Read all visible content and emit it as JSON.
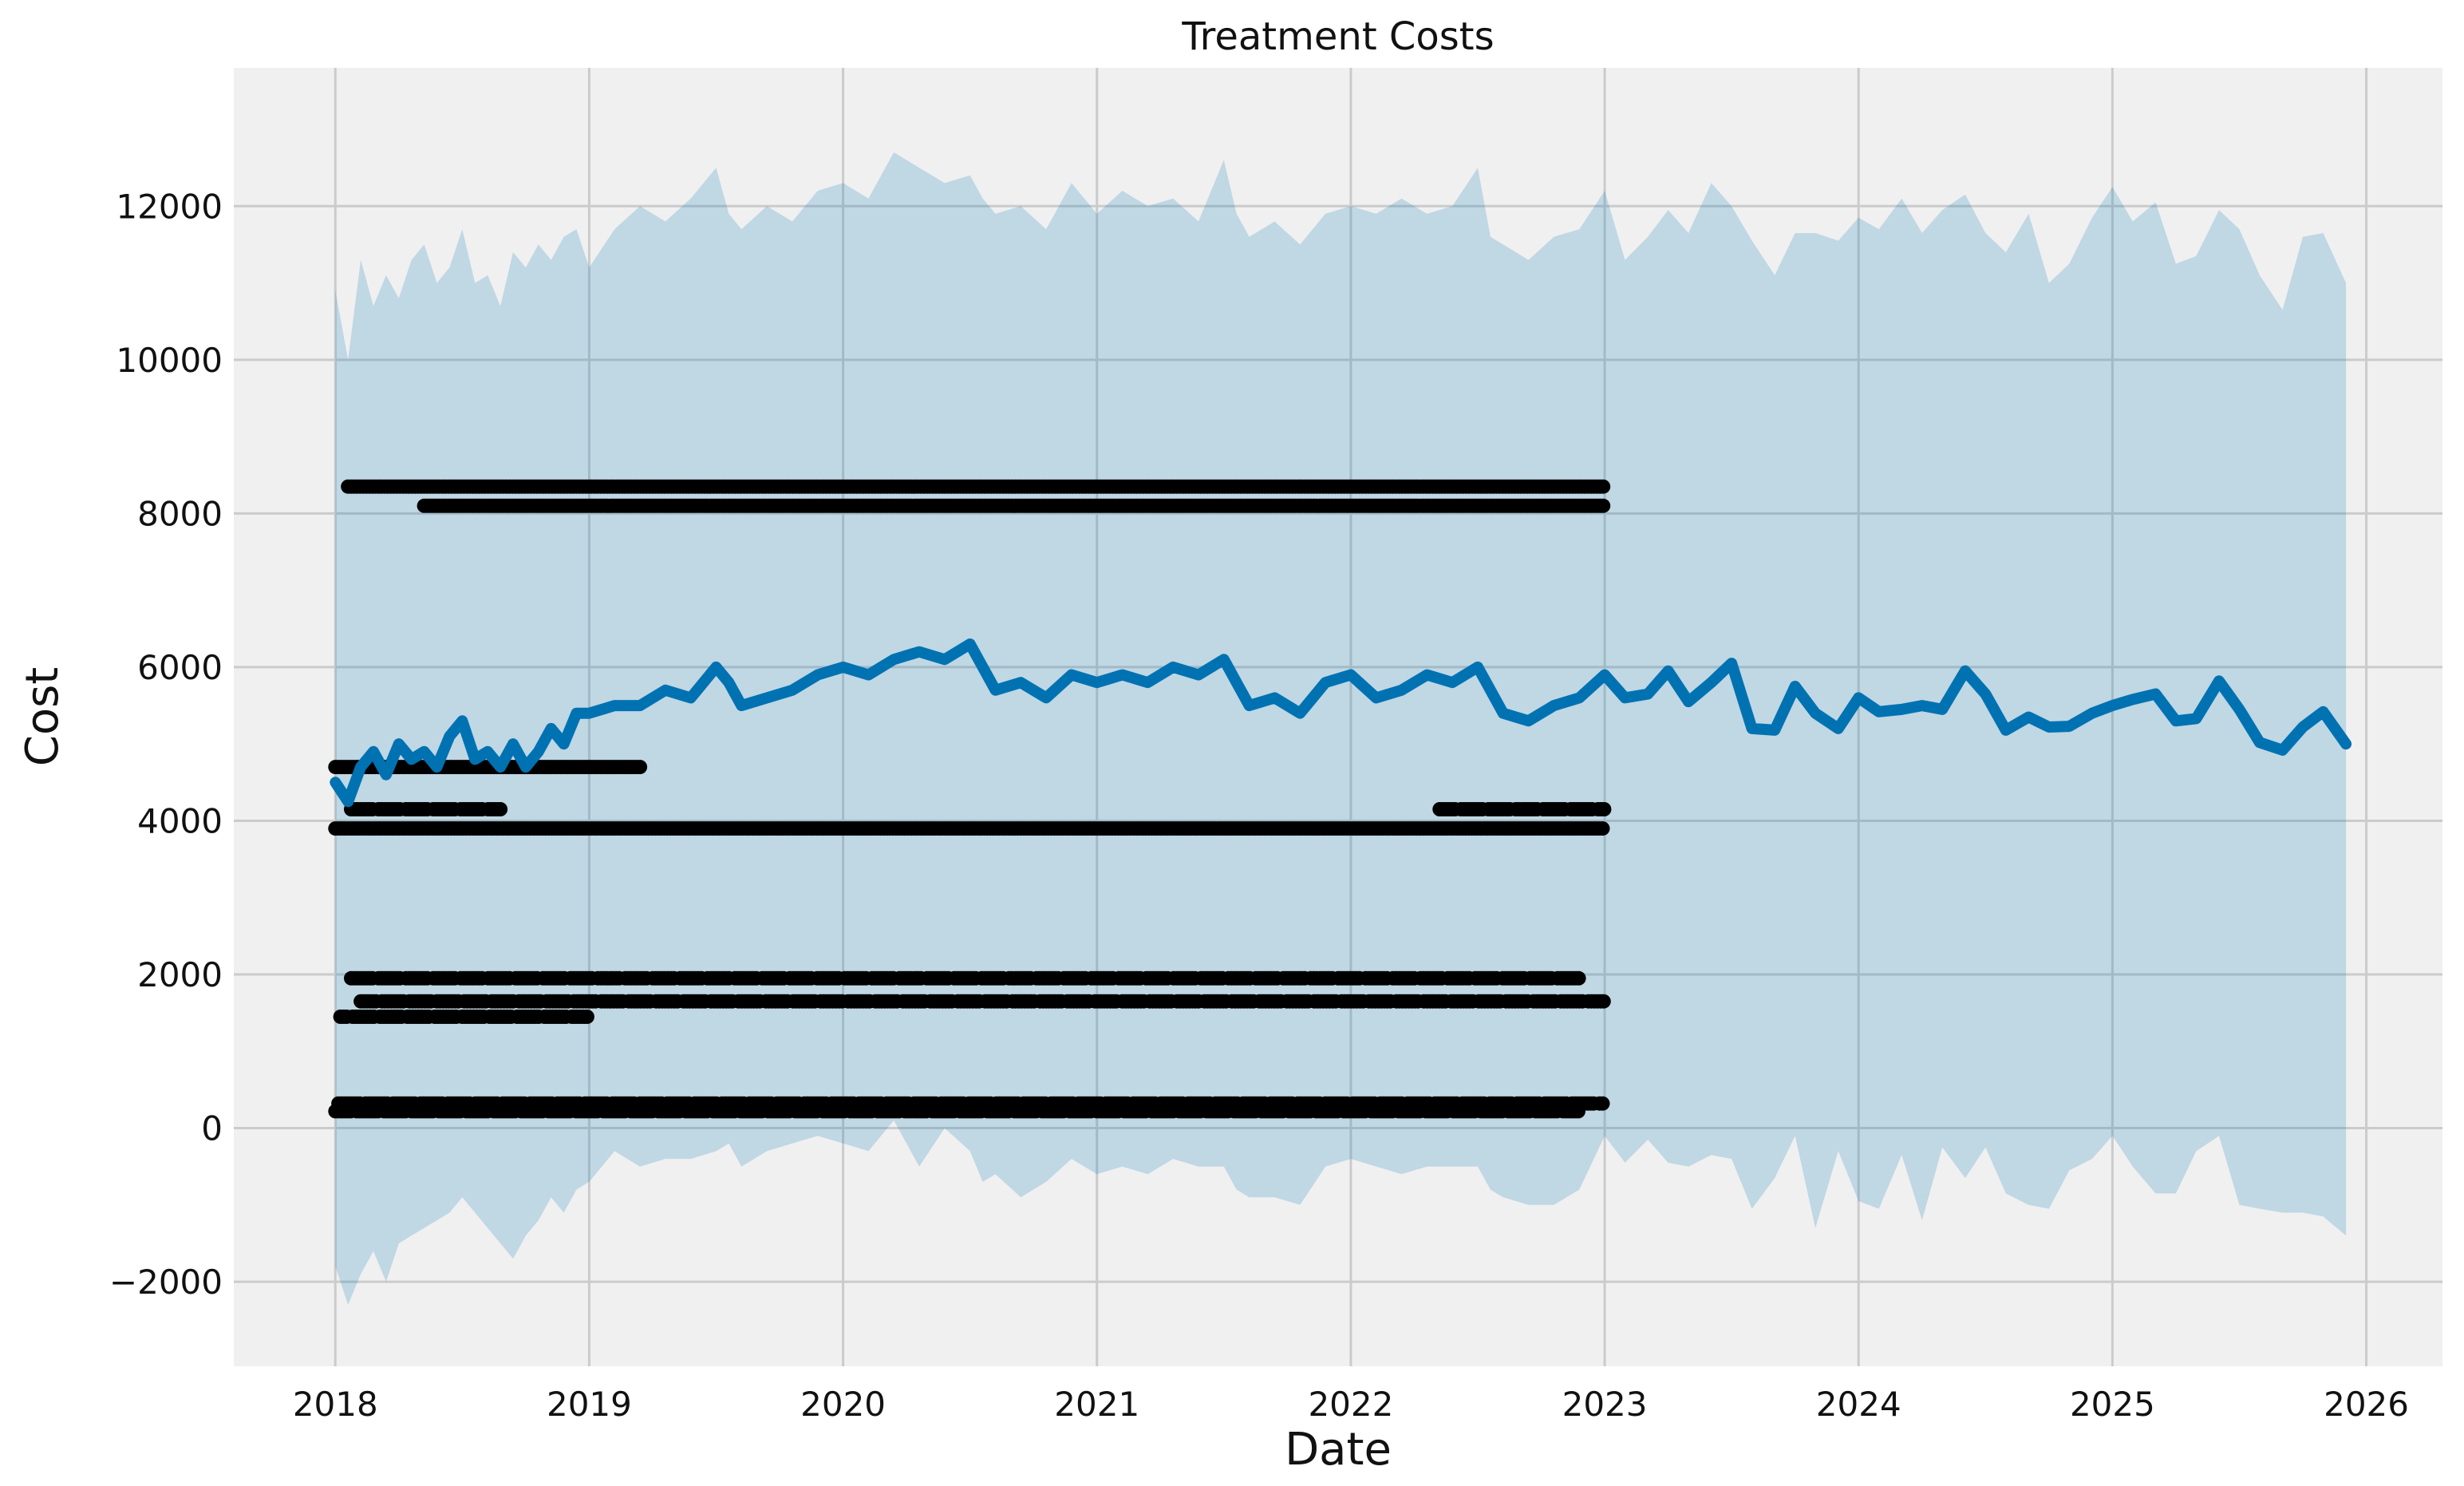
{
  "chart_data": {
    "type": "scatter",
    "title": "Treatment Costs",
    "xlabel": "Date",
    "ylabel": "Cost",
    "xlim": [
      2017.6,
      2026.3
    ],
    "ylim": [
      -3100,
      13800
    ],
    "x_ticks": [
      2018,
      2019,
      2020,
      2021,
      2022,
      2023,
      2024,
      2025,
      2026
    ],
    "x_tick_labels": [
      "2018",
      "2019",
      "2020",
      "2021",
      "2022",
      "2023",
      "2024",
      "2025",
      "2026"
    ],
    "y_ticks": [
      -2000,
      0,
      2000,
      4000,
      6000,
      8000,
      10000,
      12000
    ],
    "y_tick_labels": [
      "−2000",
      "0",
      "2000",
      "4000",
      "6000",
      "8000",
      "10000",
      "12000"
    ],
    "grid": true,
    "colors": {
      "background": "#f0f0f0",
      "grid": "#cbcbcb",
      "forecast": "#0072b2",
      "interval": "#0072b2",
      "observed": "#000000"
    },
    "series": [
      {
        "name": "yhat",
        "kind": "line",
        "x": [
          2018.0,
          2018.05,
          2018.1,
          2018.15,
          2018.2,
          2018.25,
          2018.3,
          2018.35,
          2018.4,
          2018.45,
          2018.5,
          2018.55,
          2018.6,
          2018.65,
          2018.7,
          2018.75,
          2018.8,
          2018.85,
          2018.9,
          2018.95,
          2019.0,
          2019.1,
          2019.2,
          2019.3,
          2019.4,
          2019.5,
          2019.55,
          2019.6,
          2019.7,
          2019.8,
          2019.9,
          2020.0,
          2020.1,
          2020.2,
          2020.3,
          2020.4,
          2020.5,
          2020.55,
          2020.6,
          2020.7,
          2020.8,
          2020.9,
          2021.0,
          2021.1,
          2021.2,
          2021.3,
          2021.4,
          2021.5,
          2021.55,
          2021.6,
          2021.7,
          2021.8,
          2021.9,
          2022.0,
          2022.1,
          2022.2,
          2022.3,
          2022.4,
          2022.5,
          2022.55,
          2022.6,
          2022.7,
          2022.8,
          2022.9,
          2023.0,
          2023.08,
          2023.17,
          2023.25,
          2023.33,
          2023.42,
          2023.5,
          2023.58,
          2023.67,
          2023.75,
          2023.83,
          2023.92,
          2024.0,
          2024.08,
          2024.17,
          2024.25,
          2024.33,
          2024.42,
          2024.5,
          2024.58,
          2024.67,
          2024.75,
          2024.83,
          2024.92,
          2025.0,
          2025.08,
          2025.17,
          2025.25,
          2025.33,
          2025.42,
          2025.5,
          2025.58,
          2025.67,
          2025.75,
          2025.83,
          2025.92
        ],
        "y": [
          4500,
          4250,
          4700,
          4900,
          4600,
          5000,
          4800,
          4900,
          4700,
          5100,
          5300,
          4800,
          4900,
          4700,
          5000,
          4700,
          4900,
          5200,
          5000,
          5400,
          5400,
          5500,
          5500,
          5700,
          5600,
          6000,
          5800,
          5500,
          5600,
          5700,
          5900,
          6000,
          5900,
          6100,
          6200,
          6100,
          6300,
          6000,
          5700,
          5800,
          5600,
          5900,
          5800,
          5900,
          5800,
          6000,
          5900,
          6100,
          5800,
          5500,
          5600,
          5400,
          5800,
          5900,
          5600,
          5700,
          5900,
          5800,
          6000,
          5700,
          5400,
          5300,
          5500,
          5600,
          5900,
          5600,
          5650,
          5950,
          5550,
          5800,
          6050,
          5200,
          5180,
          5750,
          5400,
          5200,
          5600,
          5420,
          5450,
          5500,
          5450,
          5950,
          5650,
          5180,
          5350,
          5220,
          5230,
          5400,
          5500,
          5580,
          5650,
          5300,
          5330,
          5820,
          5450,
          5020,
          4920,
          5220,
          5420,
          5000
        ]
      },
      {
        "name": "yhat_upper",
        "kind": "band-upper",
        "x": [
          2018.0,
          2018.05,
          2018.1,
          2018.15,
          2018.2,
          2018.25,
          2018.3,
          2018.35,
          2018.4,
          2018.45,
          2018.5,
          2018.55,
          2018.6,
          2018.65,
          2018.7,
          2018.75,
          2018.8,
          2018.85,
          2018.9,
          2018.95,
          2019.0,
          2019.1,
          2019.2,
          2019.3,
          2019.4,
          2019.5,
          2019.55,
          2019.6,
          2019.7,
          2019.8,
          2019.9,
          2020.0,
          2020.1,
          2020.2,
          2020.3,
          2020.4,
          2020.5,
          2020.55,
          2020.6,
          2020.7,
          2020.8,
          2020.9,
          2021.0,
          2021.1,
          2021.2,
          2021.3,
          2021.4,
          2021.5,
          2021.55,
          2021.6,
          2021.7,
          2021.8,
          2021.9,
          2022.0,
          2022.1,
          2022.2,
          2022.3,
          2022.4,
          2022.5,
          2022.55,
          2022.6,
          2022.7,
          2022.8,
          2022.9,
          2023.0,
          2023.08,
          2023.17,
          2023.25,
          2023.33,
          2023.42,
          2023.5,
          2023.58,
          2023.67,
          2023.75,
          2023.83,
          2023.92,
          2024.0,
          2024.08,
          2024.17,
          2024.25,
          2024.33,
          2024.42,
          2024.5,
          2024.58,
          2024.67,
          2024.75,
          2024.83,
          2024.92,
          2025.0,
          2025.08,
          2025.17,
          2025.25,
          2025.33,
          2025.42,
          2025.5,
          2025.58,
          2025.67,
          2025.75,
          2025.83,
          2025.92
        ],
        "y": [
          10900,
          10000,
          11300,
          10700,
          11100,
          10800,
          11300,
          11500,
          11000,
          11200,
          11700,
          11000,
          11100,
          10700,
          11400,
          11200,
          11500,
          11300,
          11600,
          11700,
          11200,
          11700,
          12000,
          11800,
          12100,
          12500,
          11900,
          11700,
          12000,
          11800,
          12200,
          12300,
          12100,
          12700,
          12500,
          12300,
          12400,
          12100,
          11900,
          12000,
          11700,
          12300,
          11900,
          12200,
          12000,
          12100,
          11800,
          12600,
          11900,
          11600,
          11800,
          11500,
          11900,
          12000,
          11900,
          12100,
          11900,
          12000,
          12500,
          11600,
          11500,
          11300,
          11600,
          11700,
          12200,
          11300,
          11600,
          11950,
          11650,
          12300,
          12000,
          11550,
          11100,
          11650,
          11650,
          11550,
          11850,
          11700,
          12100,
          11650,
          11950,
          12150,
          11650,
          11400,
          11900,
          11000,
          11250,
          11850,
          12250,
          11800,
          12050,
          11250,
          11350,
          11950,
          11700,
          11100,
          10650,
          11600,
          11650,
          11000
        ]
      },
      {
        "name": "yhat_lower",
        "kind": "band-lower",
        "x": [
          2018.0,
          2018.05,
          2018.1,
          2018.15,
          2018.2,
          2018.25,
          2018.3,
          2018.35,
          2018.4,
          2018.45,
          2018.5,
          2018.55,
          2018.6,
          2018.65,
          2018.7,
          2018.75,
          2018.8,
          2018.85,
          2018.9,
          2018.95,
          2019.0,
          2019.1,
          2019.2,
          2019.3,
          2019.4,
          2019.5,
          2019.55,
          2019.6,
          2019.7,
          2019.8,
          2019.9,
          2020.0,
          2020.1,
          2020.2,
          2020.3,
          2020.4,
          2020.5,
          2020.55,
          2020.6,
          2020.7,
          2020.8,
          2020.9,
          2021.0,
          2021.1,
          2021.2,
          2021.3,
          2021.4,
          2021.5,
          2021.55,
          2021.6,
          2021.7,
          2021.8,
          2021.9,
          2022.0,
          2022.1,
          2022.2,
          2022.3,
          2022.4,
          2022.5,
          2022.55,
          2022.6,
          2022.7,
          2022.8,
          2022.9,
          2023.0,
          2023.08,
          2023.17,
          2023.25,
          2023.33,
          2023.42,
          2023.5,
          2023.58,
          2023.67,
          2023.75,
          2023.83,
          2023.92,
          2024.0,
          2024.08,
          2024.17,
          2024.25,
          2024.33,
          2024.42,
          2024.5,
          2024.58,
          2024.67,
          2024.75,
          2024.83,
          2024.92,
          2025.0,
          2025.08,
          2025.17,
          2025.25,
          2025.33,
          2025.42,
          2025.5,
          2025.58,
          2025.67,
          2025.75,
          2025.83,
          2025.92
        ],
        "y": [
          -1800,
          -2300,
          -1900,
          -1600,
          -2000,
          -1500,
          -1400,
          -1300,
          -1200,
          -1100,
          -900,
          -1100,
          -1300,
          -1500,
          -1700,
          -1400,
          -1200,
          -900,
          -1100,
          -800,
          -700,
          -300,
          -500,
          -400,
          -400,
          -300,
          -200,
          -500,
          -300,
          -200,
          -100,
          -200,
          -300,
          100,
          -500,
          0,
          -300,
          -700,
          -600,
          -900,
          -700,
          -400,
          -600,
          -500,
          -600,
          -400,
          -500,
          -500,
          -800,
          -900,
          -900,
          -1000,
          -500,
          -400,
          -500,
          -600,
          -500,
          -500,
          -500,
          -800,
          -900,
          -1000,
          -1000,
          -800,
          -100,
          -450,
          -150,
          -450,
          -500,
          -350,
          -400,
          -1050,
          -650,
          -100,
          -1300,
          -300,
          -950,
          -1050,
          -350,
          -1200,
          -250,
          -650,
          -250,
          -850,
          -1000,
          -1050,
          -550,
          -400,
          -100,
          -500,
          -850,
          -850,
          -300,
          -100,
          -1000,
          -1050,
          -1100,
          -1100,
          -1150,
          -1400
        ]
      },
      {
        "name": "observed",
        "kind": "points",
        "levels": [
          {
            "y": 8350,
            "x_start": 2018.05,
            "x_end": 2023.0
          },
          {
            "y": 8100,
            "x_start": 2018.35,
            "x_end": 2023.0
          },
          {
            "y": 4700,
            "x_start": 2018.0,
            "x_end": 2019.2
          },
          {
            "y": 4150,
            "x_start": 2018.05,
            "x_end": 2018.65
          },
          {
            "y": 4150,
            "x_start": 2022.35,
            "x_end": 2023.0
          },
          {
            "y": 3900,
            "x_start": 2018.0,
            "x_end": 2023.0
          },
          {
            "y": 1950,
            "x_start": 2018.05,
            "x_end": 2022.9
          },
          {
            "y": 1650,
            "x_start": 2018.1,
            "x_end": 2023.0
          },
          {
            "y": 1450,
            "x_start": 2018.02,
            "x_end": 2019.0
          },
          {
            "y": 320,
            "x_start": 2018.0,
            "x_end": 2023.0
          },
          {
            "y": 220,
            "x_start": 2018.0,
            "x_end": 2022.9
          }
        ]
      }
    ]
  }
}
